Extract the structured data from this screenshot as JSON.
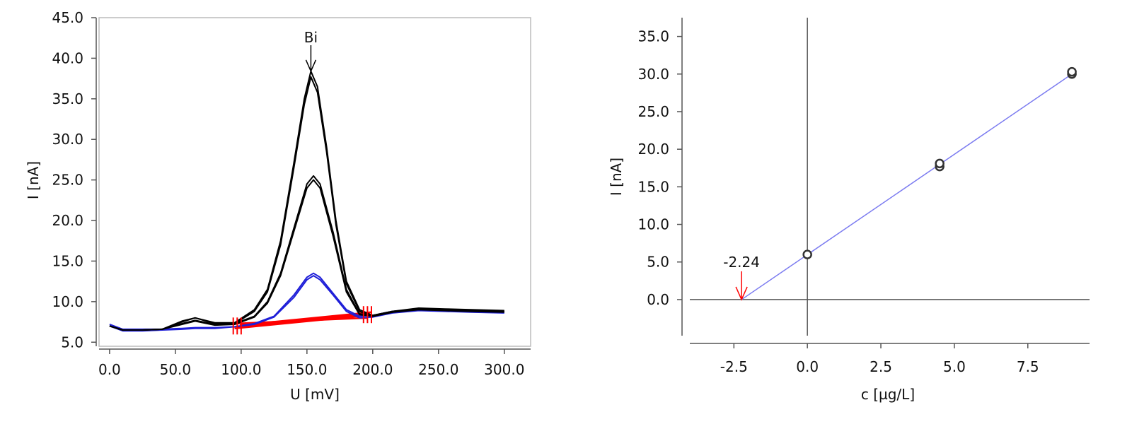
{
  "chart_data": [
    {
      "type": "line",
      "xlabel": "U [mV]",
      "ylabel": "I [nA]",
      "xlim": [
        -8,
        320
      ],
      "ylim": [
        4.5,
        45
      ],
      "x_ticks": [
        "0.0",
        "50.0",
        "100.0",
        "150.0",
        "200.0",
        "250.0",
        "300.0"
      ],
      "x_tick_values": [
        0,
        50,
        100,
        150,
        200,
        250,
        300
      ],
      "y_ticks": [
        "5.0",
        "10.0",
        "15.0",
        "20.0",
        "25.0",
        "30.0",
        "35.0",
        "40.0",
        "45.0"
      ],
      "y_tick_values": [
        5,
        10,
        15,
        20,
        25,
        30,
        35,
        40,
        45
      ],
      "annotation": {
        "label": "Bi",
        "x": 153,
        "y": 38.4
      },
      "colors": {
        "standard_additions": "#000000",
        "sample": "#1f1fd8",
        "baseline": "#ff0000"
      },
      "series": [
        {
          "color": "#1f1fd8",
          "x": [
            0,
            10,
            25,
            40,
            55,
            65,
            80,
            95,
            110,
            125,
            140,
            150,
            155,
            160,
            170,
            180,
            190,
            200,
            215,
            235,
            255,
            275,
            300
          ],
          "y": [
            7.2,
            6.6,
            6.6,
            6.6,
            6.7,
            6.8,
            6.8,
            6.9,
            7.3,
            8.2,
            10.8,
            13.0,
            13.5,
            13.0,
            11.0,
            9.0,
            8.2,
            8.3,
            8.8,
            9.1,
            9.0,
            8.9,
            8.8
          ]
        },
        {
          "color": "#1f1fd8",
          "x": [
            0,
            10,
            25,
            40,
            55,
            65,
            80,
            95,
            110,
            125,
            140,
            150,
            155,
            160,
            170,
            180,
            190,
            200,
            215,
            235,
            255,
            275,
            300
          ],
          "y": [
            7.0,
            6.4,
            6.4,
            6.5,
            6.6,
            6.7,
            6.7,
            6.9,
            7.2,
            8.1,
            10.5,
            12.7,
            13.2,
            12.7,
            10.8,
            8.8,
            8.0,
            8.1,
            8.6,
            8.9,
            8.8,
            8.7,
            8.6
          ]
        },
        {
          "color": "#000000",
          "x": [
            0,
            10,
            25,
            40,
            55,
            65,
            80,
            95,
            110,
            120,
            130,
            140,
            150,
            155,
            160,
            170,
            180,
            190,
            200,
            215,
            235,
            255,
            275,
            300
          ],
          "y": [
            7.0,
            6.5,
            6.5,
            6.6,
            7.5,
            8.0,
            7.3,
            7.3,
            8.2,
            10.0,
            13.5,
            19.0,
            24.5,
            25.5,
            24.5,
            18.5,
            11.5,
            8.5,
            8.3,
            8.8,
            9.1,
            9.0,
            8.9,
            8.8
          ]
        },
        {
          "color": "#000000",
          "x": [
            0,
            10,
            25,
            40,
            55,
            65,
            80,
            95,
            110,
            120,
            130,
            140,
            150,
            155,
            160,
            170,
            180,
            190,
            200,
            215,
            235,
            255,
            275,
            300
          ],
          "y": [
            7.0,
            6.5,
            6.5,
            6.6,
            7.2,
            7.6,
            7.1,
            7.2,
            8.1,
            9.8,
            13.2,
            18.6,
            24.0,
            25.0,
            24.0,
            18.0,
            11.2,
            8.4,
            8.2,
            8.7,
            9.0,
            8.9,
            8.8,
            8.7
          ]
        },
        {
          "color": "#000000",
          "x": [
            0,
            10,
            25,
            40,
            55,
            65,
            80,
            95,
            110,
            120,
            130,
            140,
            148,
            153,
            158,
            165,
            172,
            180,
            190,
            200,
            215,
            235,
            255,
            275,
            300
          ],
          "y": [
            7.0,
            6.5,
            6.5,
            6.6,
            7.6,
            8.0,
            7.4,
            7.4,
            9.0,
            11.5,
            17.5,
            27.0,
            35.0,
            38.4,
            36.5,
            29.0,
            20.0,
            12.5,
            9.0,
            8.3,
            8.8,
            9.2,
            9.1,
            9.0,
            8.9
          ]
        },
        {
          "color": "#000000",
          "x": [
            0,
            10,
            25,
            40,
            55,
            65,
            80,
            95,
            110,
            120,
            130,
            140,
            148,
            153,
            158,
            165,
            172,
            180,
            190,
            200,
            215,
            235,
            255,
            275,
            300
          ],
          "y": [
            7.0,
            6.5,
            6.5,
            6.6,
            7.3,
            7.7,
            7.2,
            7.3,
            8.8,
            11.2,
            17.0,
            26.4,
            34.3,
            37.7,
            35.8,
            28.4,
            19.5,
            12.2,
            8.8,
            8.2,
            8.7,
            9.1,
            9.0,
            8.9,
            8.8
          ]
        }
      ],
      "baselines": [
        {
          "x": [
            95,
            195
          ],
          "y": [
            6.7,
            8.3
          ]
        },
        {
          "x": [
            97,
            197
          ],
          "y": [
            6.9,
            8.5
          ]
        },
        {
          "x": [
            99,
            199
          ],
          "y": [
            7.1,
            8.7
          ]
        },
        {
          "x": [
            96,
            196
          ],
          "y": [
            7.3,
            8.0
          ]
        }
      ],
      "baseline_marker_x": [
        94,
        97,
        100,
        193,
        196,
        199
      ]
    },
    {
      "type": "scatter",
      "xlabel": "c [µg/L]",
      "ylabel": "I [nA]",
      "xlim": [
        -4,
        9.6
      ],
      "ylim": [
        -4.8,
        37.5
      ],
      "x_ticks": [
        "-2.5",
        "0.0",
        "2.5",
        "5.0",
        "7.5"
      ],
      "x_tick_values": [
        -2.5,
        0,
        2.5,
        5,
        7.5
      ],
      "y_ticks": [
        "0.0",
        "5.0",
        "10.0",
        "15.0",
        "20.0",
        "25.0",
        "30.0",
        "35.0"
      ],
      "y_tick_values": [
        0,
        5,
        10,
        15,
        20,
        25,
        30,
        35
      ],
      "points": [
        {
          "x": 0.0,
          "y": 6.0
        },
        {
          "x": 4.5,
          "y": 17.7
        },
        {
          "x": 4.5,
          "y": 18.1
        },
        {
          "x": 9.0,
          "y": 30.0
        },
        {
          "x": 9.0,
          "y": 30.3
        }
      ],
      "fit_line": {
        "x": [
          -2.24,
          9.0
        ],
        "y": [
          0,
          30.0
        ]
      },
      "result": {
        "label": "-2.24",
        "x": -2.24
      },
      "colors": {
        "fit": "#7b7bf0",
        "result": "#ff0000"
      }
    }
  ]
}
